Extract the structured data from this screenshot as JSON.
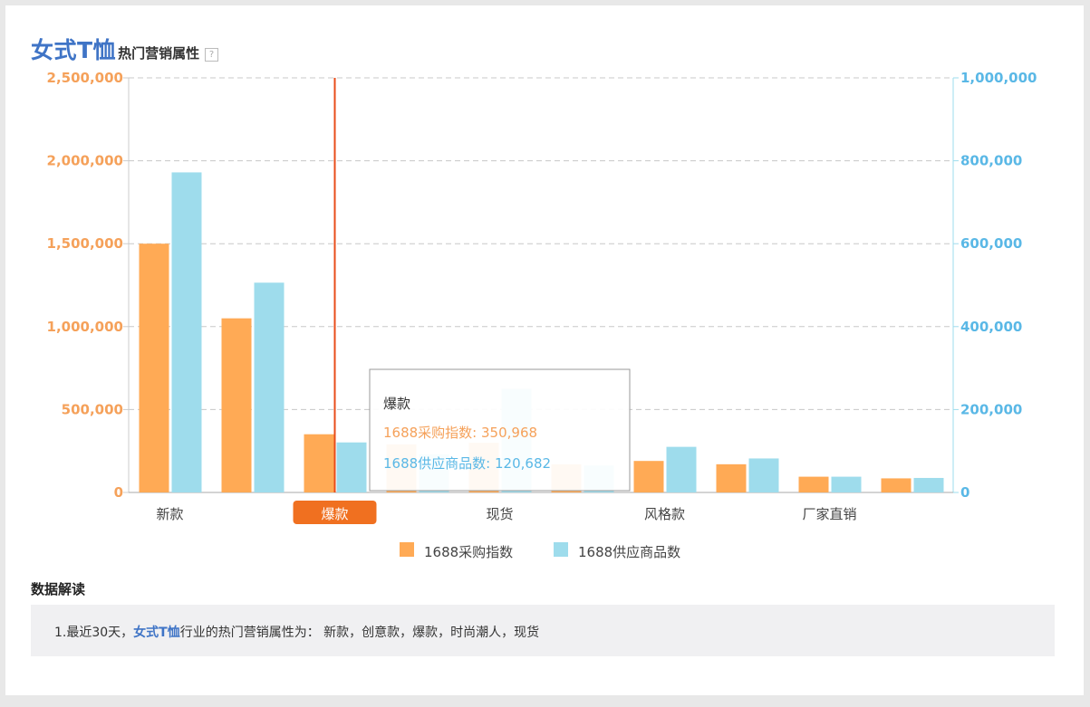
{
  "header": {
    "title_main": "女式T恤",
    "title_sub": "热门营销属性",
    "help_glyph": "?"
  },
  "colors": {
    "purchase": "#ffaa55",
    "supply": "#9edcec",
    "left_axis": "#f5a15a",
    "right_axis": "#5ab8e6",
    "highlight": "#f07020",
    "crosshair": "#e84c1a"
  },
  "chart_data": {
    "type": "bar",
    "categories": [
      "新款",
      "创意款",
      "爆款",
      "时尚潮人",
      "现货",
      "",
      "风格款",
      "",
      "厂家直销",
      ""
    ],
    "visible_tick_labels": [
      "新款",
      "爆款",
      "现货",
      "风格款",
      "厂家直销"
    ],
    "highlighted_category": "爆款",
    "series": [
      {
        "name": "1688采购指数",
        "axis": "left",
        "values": [
          1500000,
          1050000,
          350968,
          290000,
          300000,
          170000,
          190000,
          170000,
          95000,
          85000
        ]
      },
      {
        "name": "1688供应商品数",
        "axis": "right",
        "values": [
          772000,
          506000,
          120682,
          92000,
          250000,
          65000,
          110000,
          82000,
          38000,
          35000
        ]
      }
    ],
    "y_left": {
      "ylim": [
        0,
        2500000
      ],
      "ticks": [
        "0",
        "500,000",
        "1,000,000",
        "1,500,000",
        "2,000,000",
        "2,500,000"
      ]
    },
    "y_right": {
      "ylim": [
        0,
        1000000
      ],
      "ticks": [
        "0",
        "200,000",
        "400,000",
        "600,000",
        "800,000",
        "1,000,000"
      ]
    },
    "grid": true,
    "legend": "bottom-center"
  },
  "tooltip": {
    "title": "爆款",
    "line1": "1688采购指数: 350,968",
    "line2": "1688供应商品数: 120,682"
  },
  "interpretation": {
    "heading": "数据解读",
    "prefix": "1.最近30天，",
    "keyword": "女式T恤",
    "suffix": "行业的热门营销属性为： 新款，创意款，爆款，时尚潮人，现货"
  }
}
